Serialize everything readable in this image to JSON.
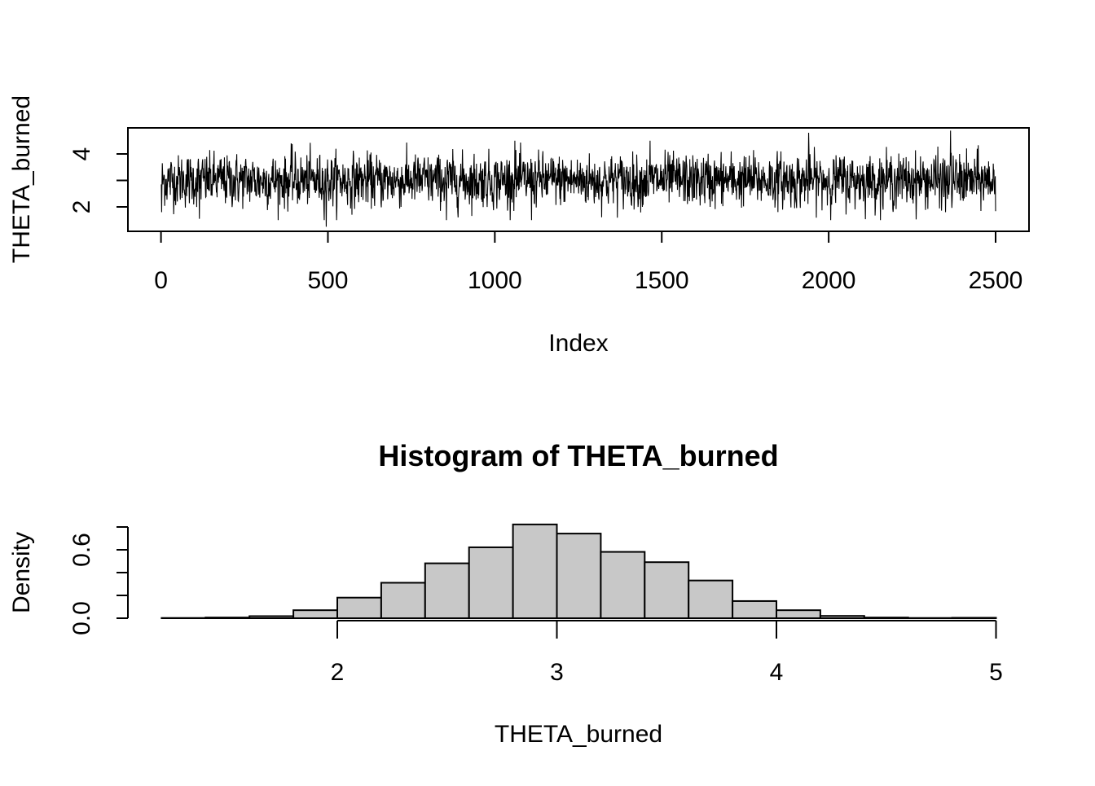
{
  "chart_data": [
    {
      "type": "line",
      "title": "",
      "xlabel": "Index",
      "ylabel": "THETA_burned",
      "xlim": [
        1,
        2500
      ],
      "ylim": [
        1.2,
        4.9
      ],
      "x_ticks": [
        "0",
        "500",
        "1000",
        "1500",
        "2000",
        "2500"
      ],
      "y_ticks": [
        "2",
        "",
        "4"
      ],
      "n_points": 2500,
      "mean": 3.0,
      "sd": 0.48,
      "min": 1.25,
      "max": 4.88,
      "notable_points": [
        {
          "x": 2,
          "y": 1.8
        },
        {
          "x": 115,
          "y": 1.55
        },
        {
          "x": 390,
          "y": 4.4
        },
        {
          "x": 495,
          "y": 1.25
        },
        {
          "x": 855,
          "y": 1.5
        },
        {
          "x": 1060,
          "y": 4.5
        },
        {
          "x": 1110,
          "y": 1.5
        },
        {
          "x": 1465,
          "y": 4.5
        },
        {
          "x": 1940,
          "y": 4.8
        },
        {
          "x": 2350,
          "y": 1.8
        },
        {
          "x": 2365,
          "y": 4.88
        }
      ],
      "line_color": "#000000"
    },
    {
      "type": "bar",
      "subtype": "histogram",
      "title": "Histogram of THETA_burned",
      "xlabel": "THETA_burned",
      "ylabel": "Density",
      "x_ticks": [
        "2",
        "3",
        "4",
        "5"
      ],
      "y_ticks": [
        "0.0",
        "",
        "0.6",
        ""
      ],
      "bin_edges": [
        1.2,
        1.4,
        1.6,
        1.8,
        2.0,
        2.2,
        2.4,
        2.6,
        2.8,
        3.0,
        3.2,
        3.4,
        3.6,
        3.8,
        4.0,
        4.2,
        4.4,
        4.6,
        4.8,
        5.0
      ],
      "values": [
        0.002,
        0.006,
        0.018,
        0.07,
        0.18,
        0.31,
        0.48,
        0.62,
        0.82,
        0.74,
        0.58,
        0.49,
        0.33,
        0.15,
        0.07,
        0.02,
        0.006,
        0.002,
        0.004
      ],
      "ylim": [
        0,
        0.82
      ],
      "bar_fill": "#c8c8c8",
      "bar_stroke": "#000000"
    }
  ]
}
